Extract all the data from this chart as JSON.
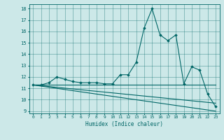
{
  "title": "",
  "xlabel": "Humidex (Indice chaleur)",
  "background_color": "#cce8e8",
  "line_color": "#006666",
  "xlim": [
    -0.5,
    23.5
  ],
  "ylim": [
    8.8,
    18.4
  ],
  "xticks": [
    0,
    1,
    2,
    3,
    4,
    5,
    6,
    7,
    8,
    9,
    10,
    11,
    12,
    13,
    14,
    15,
    16,
    17,
    18,
    19,
    20,
    21,
    22,
    23
  ],
  "yticks": [
    9,
    10,
    11,
    12,
    13,
    14,
    15,
    16,
    17,
    18
  ],
  "series": [
    [
      0,
      11.3
    ],
    [
      1,
      11.3
    ],
    [
      2,
      11.5
    ],
    [
      3,
      12.0
    ],
    [
      4,
      11.8
    ],
    [
      5,
      11.6
    ],
    [
      6,
      11.5
    ],
    [
      7,
      11.5
    ],
    [
      8,
      11.5
    ],
    [
      9,
      11.4
    ],
    [
      10,
      11.4
    ],
    [
      11,
      12.2
    ],
    [
      12,
      12.2
    ],
    [
      13,
      13.3
    ],
    [
      14,
      16.3
    ],
    [
      15,
      18.0
    ],
    [
      16,
      15.7
    ],
    [
      17,
      15.2
    ],
    [
      18,
      15.7
    ],
    [
      19,
      11.4
    ],
    [
      20,
      12.9
    ],
    [
      21,
      12.6
    ],
    [
      22,
      10.5
    ],
    [
      23,
      9.4
    ]
  ],
  "series2": [
    [
      0,
      11.3
    ],
    [
      23,
      11.3
    ]
  ],
  "series3": [
    [
      0,
      11.3
    ],
    [
      23,
      9.7
    ]
  ],
  "series4": [
    [
      0,
      11.3
    ],
    [
      23,
      9.0
    ]
  ]
}
